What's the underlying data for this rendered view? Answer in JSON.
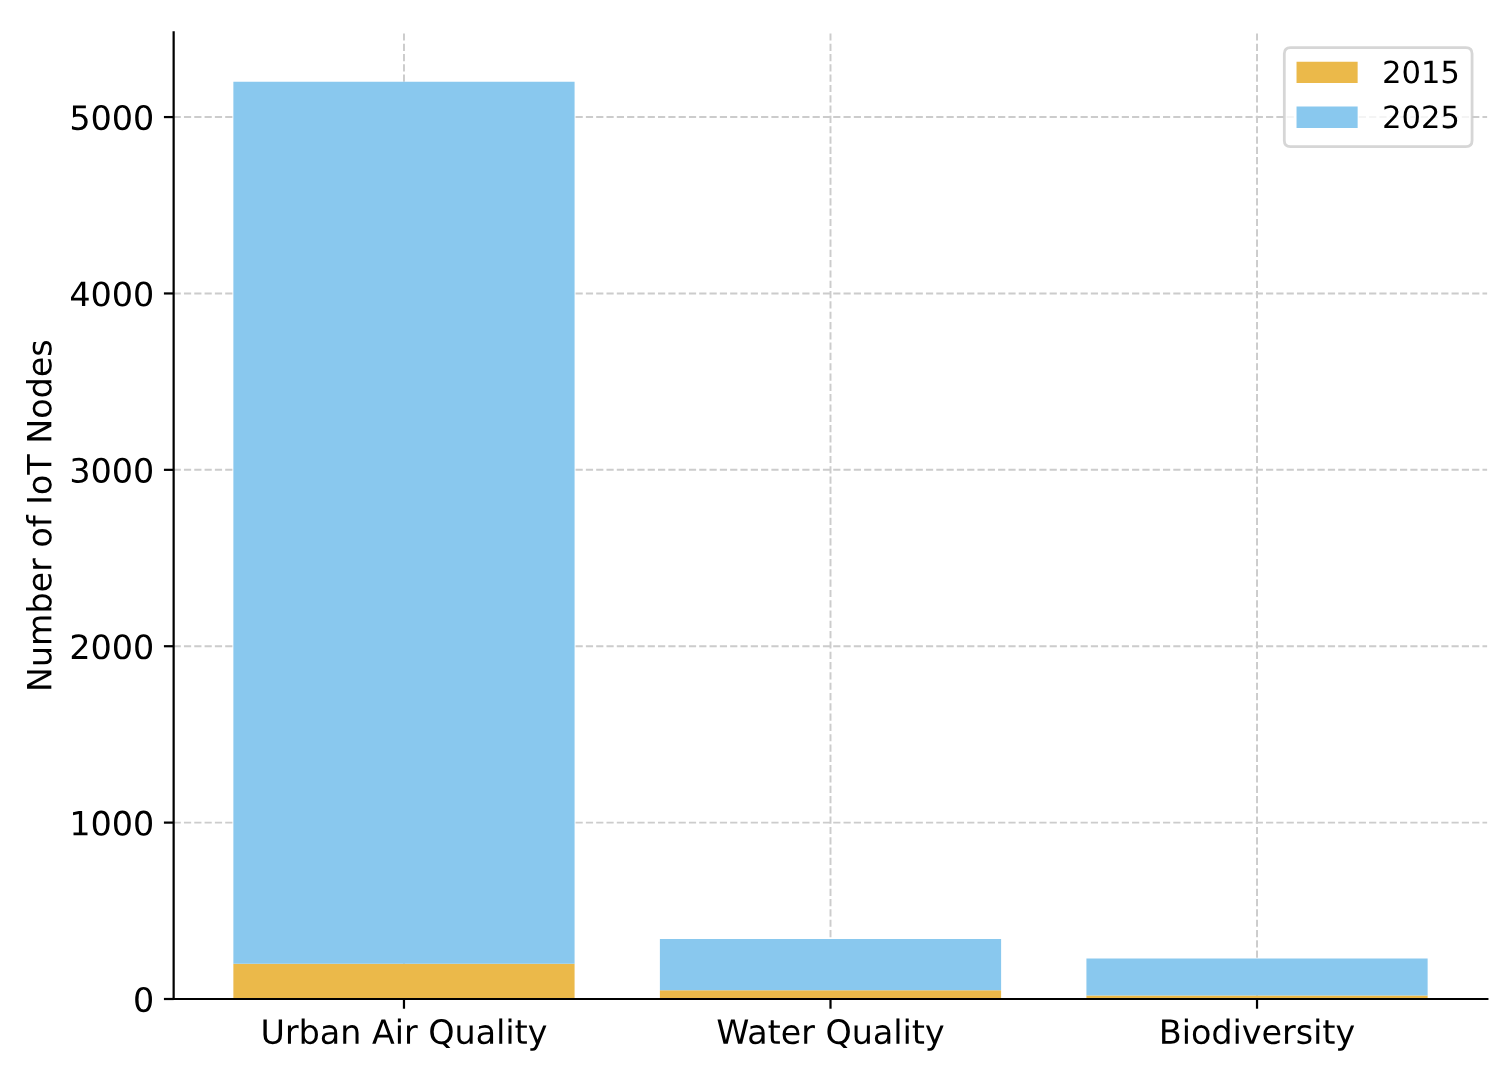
{
  "chart_data": {
    "type": "bar",
    "stacked": true,
    "ylabel": "Number of IoT Nodes",
    "categories": [
      "Urban Air Quality",
      "Water Quality",
      "Biodiversity"
    ],
    "series": [
      {
        "name": "2015",
        "color": "#ebb94a",
        "values": [
          200,
          50,
          20
        ]
      },
      {
        "name": "2025",
        "color": "#89c8ee",
        "values": [
          5000,
          290,
          210
        ]
      }
    ],
    "ylim": [
      0,
      5480
    ],
    "yticks": [
      0,
      1000,
      2000,
      3000,
      4000,
      5000
    ],
    "grid": true,
    "legend": "top right"
  }
}
